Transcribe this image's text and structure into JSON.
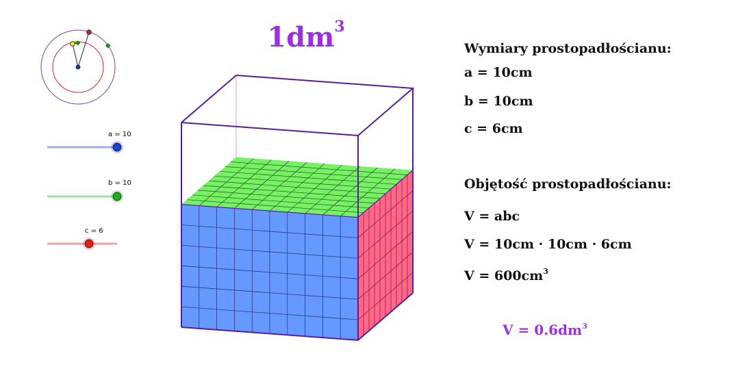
{
  "title": {
    "base": "1dm",
    "exponent": "3"
  },
  "dimensions": {
    "heading": "Wymiary prostopadłościanu:",
    "a_text": "a = 10cm",
    "b_text": "b = 10cm",
    "c_text": "c = 6cm"
  },
  "volume": {
    "heading": "Objętość prostopadłościanu:",
    "formula": "V = abc",
    "substitution": "V = 10cm · 10cm · 6cm",
    "result_base": "V = 600cm",
    "result_exponent": "3",
    "final_base": "V = 0.6dm",
    "final_exponent": "3"
  },
  "sliders": [
    {
      "name": "a",
      "label": "a = 10",
      "value": 10,
      "min": 0,
      "max": 10,
      "color": "#1f3fd0",
      "track_color": "#9ab0ee"
    },
    {
      "name": "b",
      "label": "b = 10",
      "value": 10,
      "min": 0,
      "max": 10,
      "color": "#1aaf1a",
      "track_color": "#9ee09e"
    },
    {
      "name": "c",
      "label": "c = 6",
      "value": 6,
      "min": 0,
      "max": 10,
      "color": "#e02020",
      "track_color": "#f2a0a0"
    }
  ],
  "cube": {
    "a": 10,
    "b": 10,
    "c": 6,
    "max_height": 10,
    "front_color": "#6699ff",
    "side_color": "#ff6688",
    "top_color": "#77f066",
    "grid_color": "#2a3a7a",
    "edge_color": "#5a1aa0"
  },
  "colors": {
    "accent": "#9b30e0",
    "text": "#111111"
  }
}
